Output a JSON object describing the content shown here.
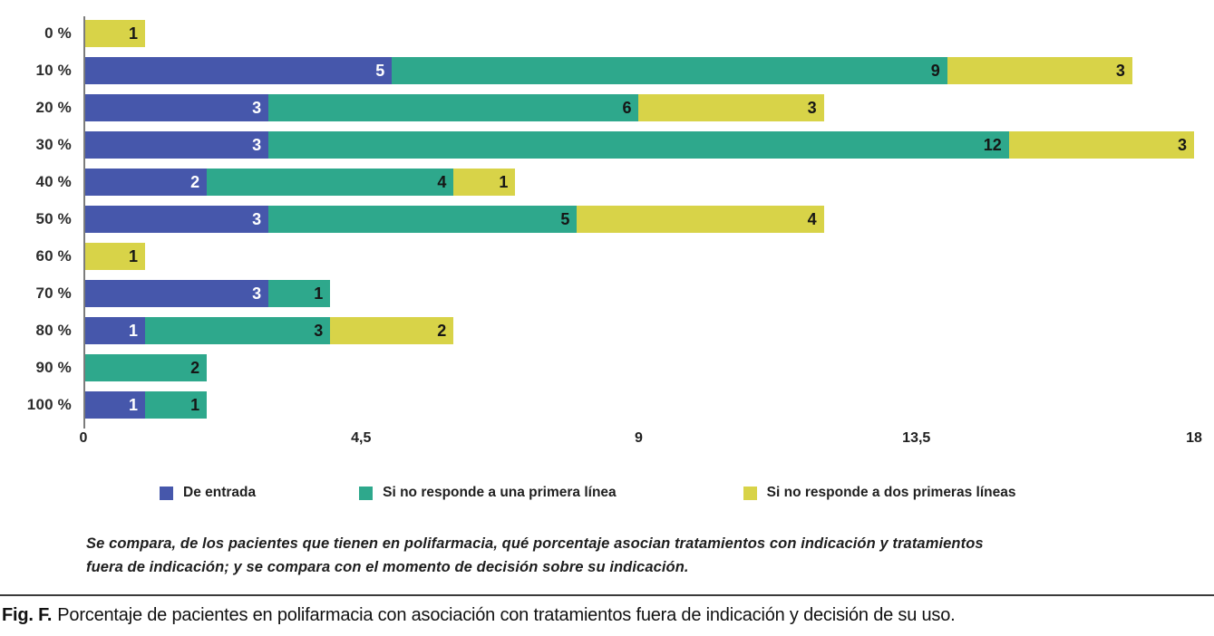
{
  "figure": {
    "note_lines": [
      "Se compara, de los pacientes que tienen en polifarmacia, qué porcentaje asocian tratamientos con indicación y tratamientos",
      "fuera de indicación; y se compara con el momento de decisión sobre su indicación."
    ],
    "caption_label": "Fig. F.",
    "caption_text": "Porcentaje de pacientes en polifarmacia con asociación con tratamientos fuera de indicación y decisión de su uso."
  },
  "colors": {
    "blue": "#4657ab",
    "teal": "#2ea88c",
    "yellow": "#d8d348",
    "axis": "#7c7c7c"
  },
  "chart_data": {
    "type": "bar",
    "orientation": "horizontal",
    "stacked": true,
    "title": "",
    "xlabel": "",
    "ylabel": "",
    "categories": [
      "0 %",
      "10 %",
      "20 %",
      "30 %",
      "40 %",
      "50 %",
      "60 %",
      "70 %",
      "80 %",
      "90 %",
      "100 %"
    ],
    "series": [
      {
        "name": "De entrada",
        "color": "#4657ab",
        "label_color": "#ffffff",
        "values": [
          0,
          5,
          3,
          3,
          2,
          3,
          0,
          3,
          1,
          0,
          1
        ]
      },
      {
        "name": "Si no responde a una primera línea",
        "color": "#2ea88c",
        "label_color": "#161616",
        "values": [
          0,
          9,
          6,
          12,
          4,
          5,
          0,
          1,
          3,
          2,
          1
        ]
      },
      {
        "name": "Si no responde a dos primeras líneas",
        "color": "#d8d348",
        "label_color": "#161616",
        "values": [
          1,
          3,
          3,
          3,
          1,
          4,
          1,
          0,
          2,
          0,
          0
        ]
      }
    ],
    "xlim": [
      0,
      18
    ],
    "x_ticks": [
      "0",
      "4,5",
      "9",
      "13,5",
      "18"
    ],
    "grid": false,
    "legend_position": "bottom"
  }
}
